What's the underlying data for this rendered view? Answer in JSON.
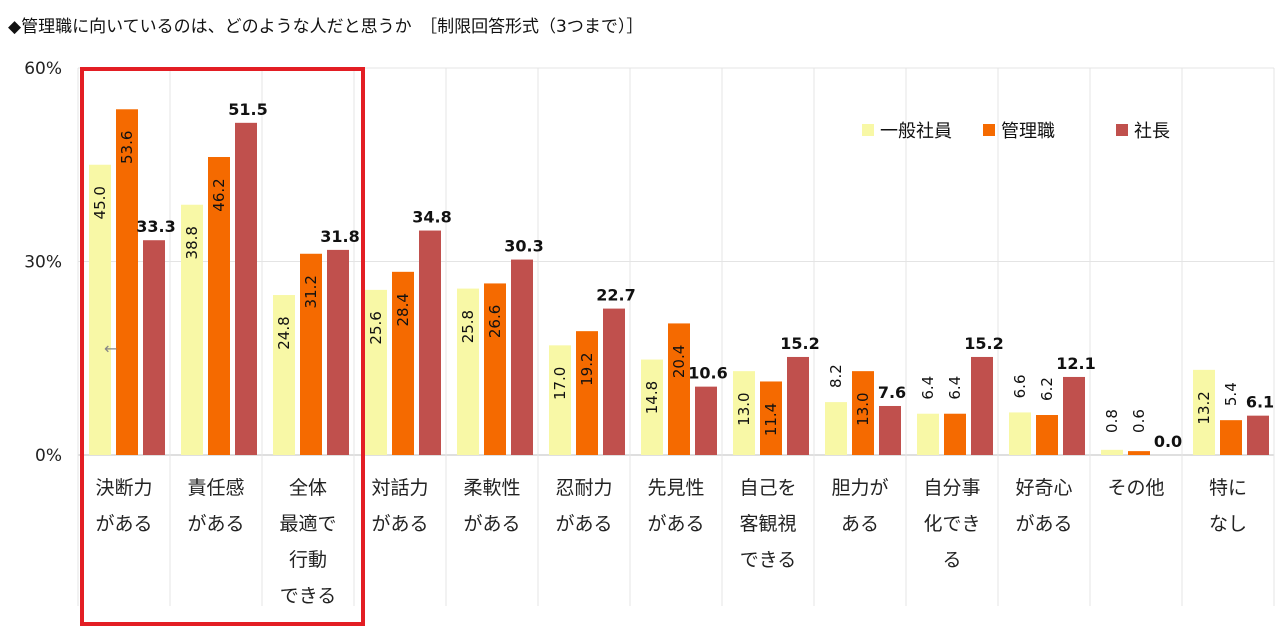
{
  "chart_data": {
    "type": "bar",
    "title": "◆管理職に向いているのは、どのような人だと思うか　［制限回答形式（3つまで）］",
    "ylim": [
      0,
      60
    ],
    "y_ticks": [
      "0%",
      "30%",
      "60%"
    ],
    "legend_position": "top-right",
    "colors": [
      "#f8f8a6",
      "#f56a00",
      "#c0504d",
      "#e31e24"
    ],
    "categories": [
      [
        "決断力",
        "がある"
      ],
      [
        "責任感",
        "がある"
      ],
      [
        "全体",
        "最適で",
        "行動",
        "できる"
      ],
      [
        "対話力",
        "がある"
      ],
      [
        "柔軟性",
        "がある"
      ],
      [
        "忍耐力",
        "がある"
      ],
      [
        "先見性",
        "がある"
      ],
      [
        "自己を",
        "客観視",
        "できる"
      ],
      [
        "胆力が",
        "ある"
      ],
      [
        "自分事",
        "化でき",
        "る"
      ],
      [
        "好奇心",
        "がある"
      ],
      [
        "その他"
      ],
      [
        "特に",
        "なし"
      ]
    ],
    "series": [
      {
        "name": "一般社員",
        "values": [
          45.0,
          38.8,
          24.8,
          25.6,
          25.8,
          17.0,
          14.8,
          13.0,
          8.2,
          6.4,
          6.6,
          0.8,
          13.2
        ]
      },
      {
        "name": "管理職",
        "values": [
          53.6,
          46.2,
          31.2,
          28.4,
          26.6,
          19.2,
          20.4,
          11.4,
          13.0,
          6.4,
          6.2,
          0.6,
          5.4
        ]
      },
      {
        "name": "社長",
        "values": [
          33.3,
          51.5,
          31.8,
          34.8,
          30.3,
          22.7,
          10.6,
          15.2,
          7.6,
          15.2,
          12.1,
          0.0,
          6.1
        ]
      }
    ],
    "annotation": "←"
  }
}
